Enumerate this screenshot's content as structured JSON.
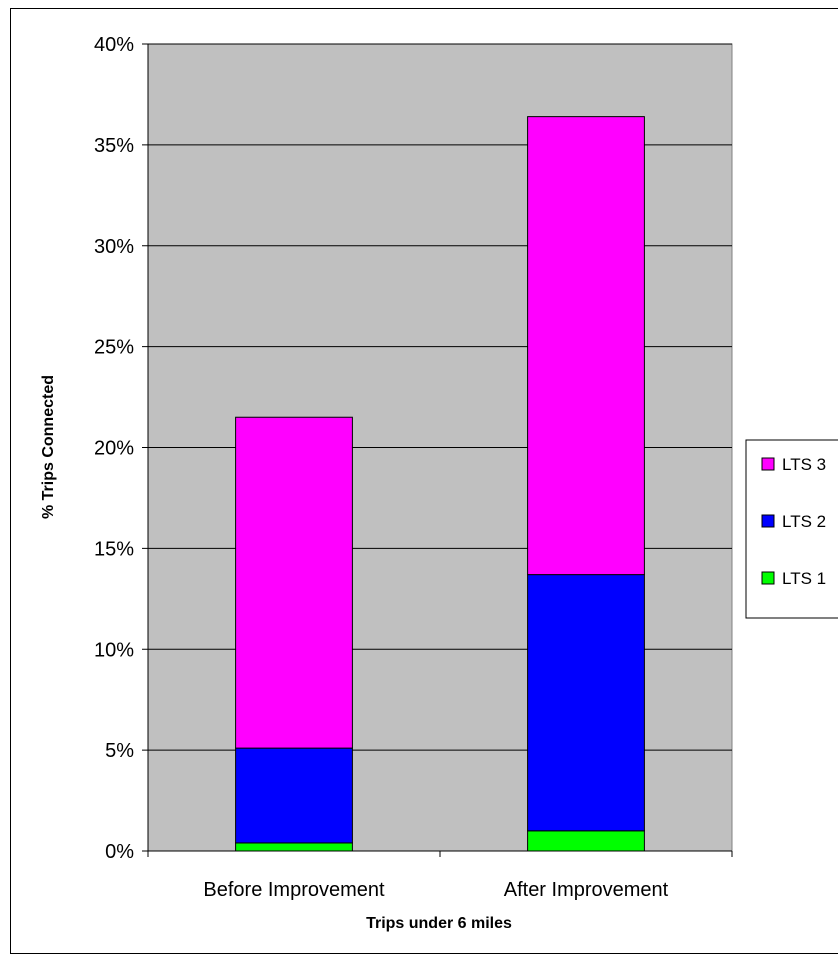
{
  "chart_data": {
    "type": "bar",
    "stacked": true,
    "categories": [
      "Before Improvement",
      "After Improvement"
    ],
    "series": [
      {
        "name": "LTS 1",
        "values": [
          0.4,
          1.0
        ],
        "color": "#00ff00"
      },
      {
        "name": "LTS 2",
        "values": [
          4.7,
          12.7
        ],
        "color": "#0000ff"
      },
      {
        "name": "LTS 3",
        "values": [
          16.4,
          22.7
        ],
        "color": "#ff00ff"
      }
    ],
    "title": "",
    "xlabel": "Trips under 6 miles",
    "ylabel": "% Trips Connected",
    "ylim": [
      0,
      40
    ],
    "yticks": [
      0,
      5,
      10,
      15,
      20,
      25,
      30,
      35,
      40
    ],
    "ytick_labels": [
      "0%",
      "5%",
      "10%",
      "15%",
      "20%",
      "25%",
      "30%",
      "35%",
      "40%"
    ],
    "grid": true,
    "plot_background": "#c0c0c0",
    "legend_placement": "right",
    "legend_order": [
      "LTS 3",
      "LTS 2",
      "LTS 1"
    ]
  }
}
